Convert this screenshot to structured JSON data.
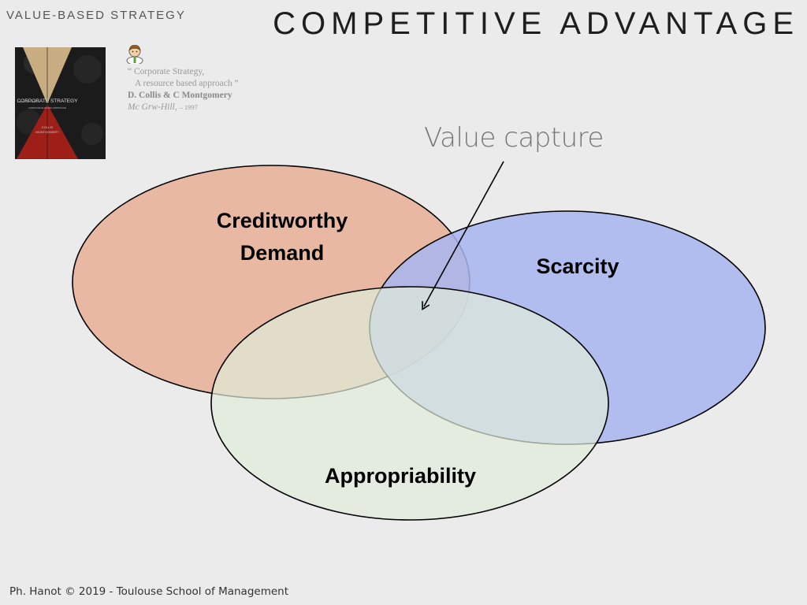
{
  "header": {
    "section_label": "VALUE-BASED STRATEGY",
    "title": "COMPETITIVE ADVANTAGE"
  },
  "citation": {
    "line1": "“ Corporate Strategy,",
    "line2": "A resource based approach ”",
    "authors": "D. Collis & C Montgomery",
    "publisher": "Mc Grw-Hill,",
    "year": "– 1997"
  },
  "book": {
    "cover_title": "CORPORATE STRATEGY",
    "cover_subtitle": "A RESOURCE-BASED APPROACH",
    "cover_edition": "SECOND EDITION",
    "cover_author1": "COLLIS",
    "cover_author2": "MONTGOMERY"
  },
  "diagram": {
    "circles": [
      {
        "id": "demand",
        "label_line1": "Creditworthy",
        "label_line2": "Demand",
        "fill": "#e8b8a2"
      },
      {
        "id": "scarcity",
        "label": "Scarcity",
        "fill": "#a8b5f0"
      },
      {
        "id": "appropriability",
        "label": "Appropriability",
        "fill": "#dfedda"
      }
    ],
    "annotation": "Value capture"
  },
  "footer": {
    "text": "Ph. Hanot © 2019  -  Toulouse School of Management"
  },
  "colors": {
    "background": "#ebebeb",
    "demand": "#e8b8a2",
    "scarcity": "#a8b5f0",
    "appropriability": "#dfedda",
    "outline": "#000000"
  }
}
